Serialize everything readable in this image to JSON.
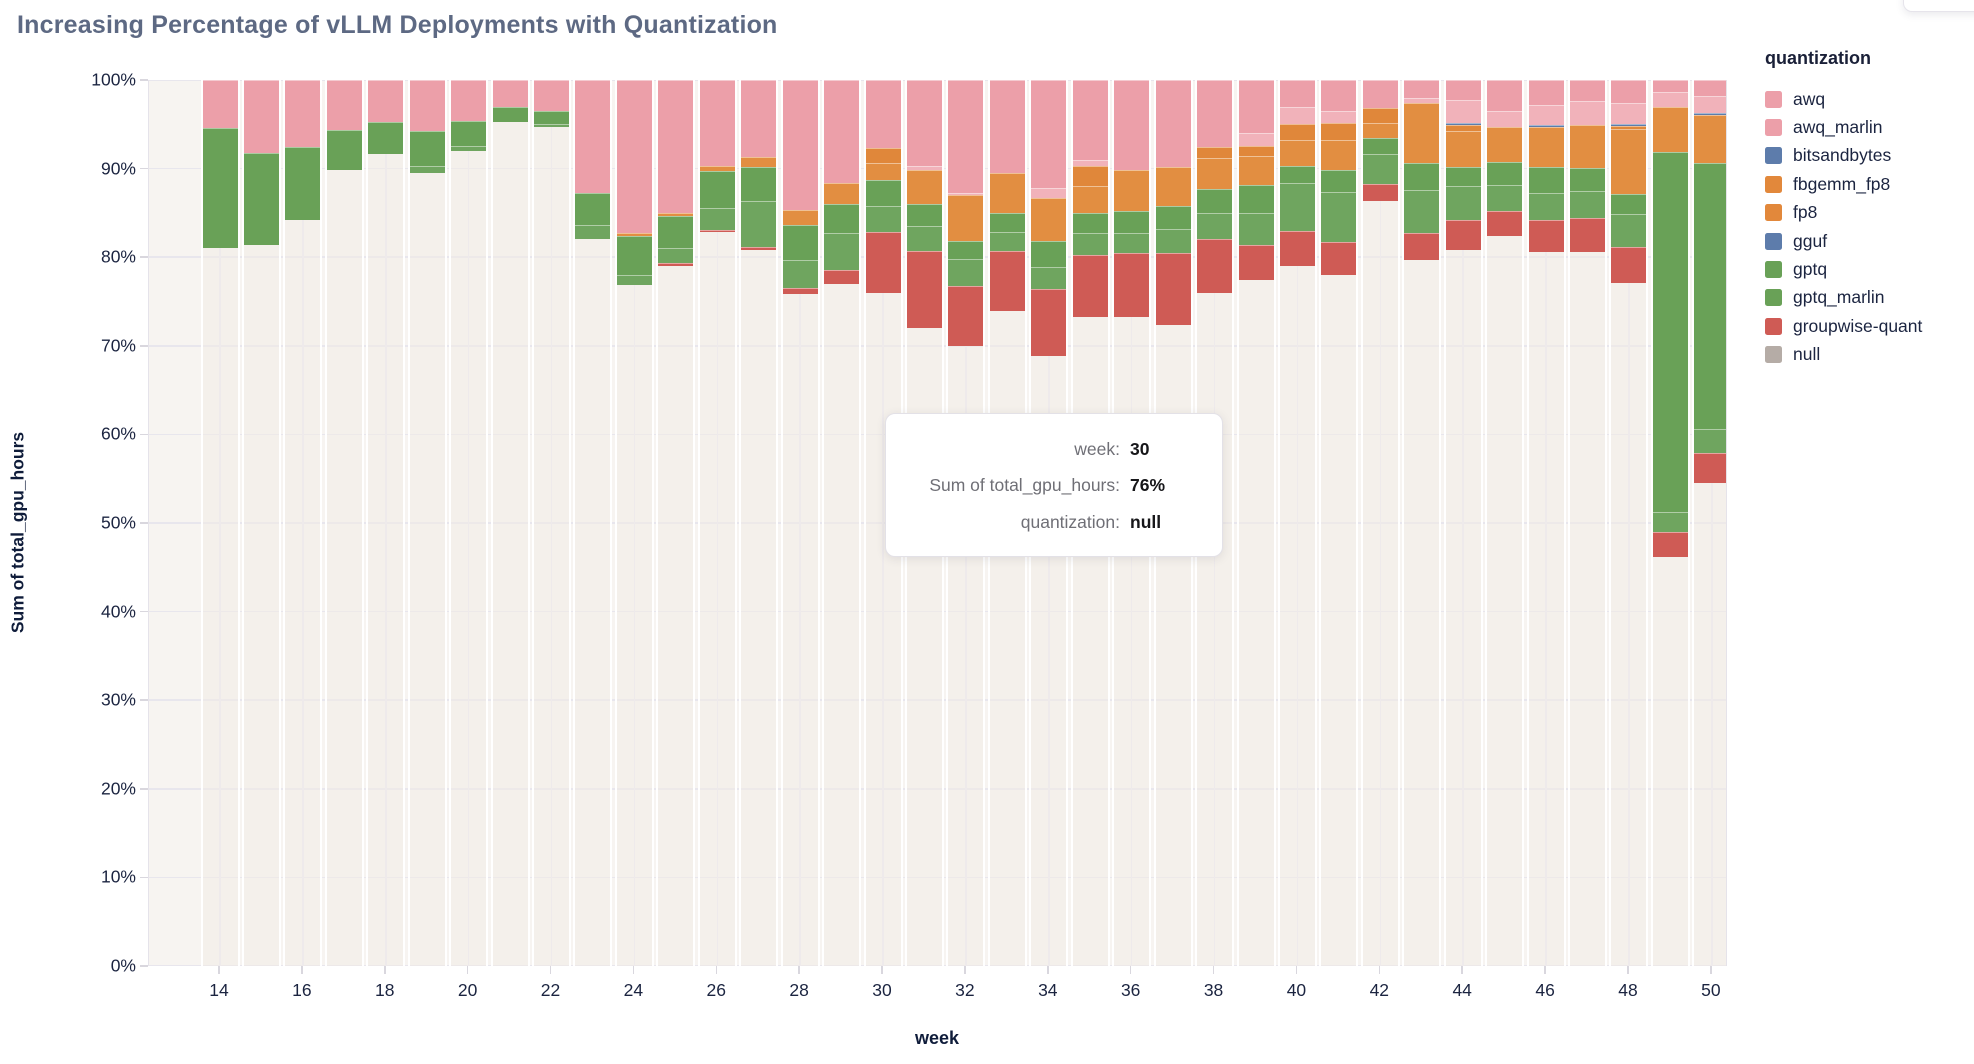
{
  "title": {
    "text": "Increasing Percentage of vLLM Deployments with Quantization"
  },
  "y_axis": {
    "title": "Sum of total_gpu_hours",
    "tick_labels": [
      "0%",
      "10%",
      "20%",
      "30%",
      "40%",
      "50%",
      "60%",
      "70%",
      "80%",
      "90%",
      "100%"
    ]
  },
  "x_axis": {
    "title": "week",
    "tick_labels": [
      "14",
      "16",
      "18",
      "20",
      "22",
      "24",
      "26",
      "28",
      "30",
      "32",
      "34",
      "36",
      "38",
      "40",
      "42",
      "44",
      "46",
      "48",
      "50"
    ]
  },
  "legend": {
    "title": "quantization",
    "items": [
      {
        "label": "awq",
        "color": "#EC9FA9"
      },
      {
        "label": "awq_marlin",
        "color": "#EC9FA9"
      },
      {
        "label": "bitsandbytes",
        "color": "#5D7CAB"
      },
      {
        "label": "fbgemm_fp8",
        "color": "#E2883B"
      },
      {
        "label": "fp8",
        "color": "#E2883B"
      },
      {
        "label": "gguf",
        "color": "#5D7CAB"
      },
      {
        "label": "gptq",
        "color": "#69A157"
      },
      {
        "label": "gptq_marlin",
        "color": "#69A157"
      },
      {
        "label": "groupwise-quant",
        "color": "#CF5B55"
      },
      {
        "label": "null",
        "color": "#B5ACA6"
      }
    ]
  },
  "tooltip": {
    "rows": [
      {
        "label": "week:",
        "value": "30"
      },
      {
        "label": "Sum of total_gpu_hours:",
        "value": "76%"
      },
      {
        "label": "quantization:",
        "value": "null"
      }
    ]
  },
  "chart_data": {
    "type": "bar",
    "subtype": "stacked_percent",
    "title": "Increasing Percentage of vLLM Deployments with Quantization",
    "xlabel": "week",
    "ylabel": "Sum of total_gpu_hours",
    "ylim": [
      0,
      100
    ],
    "y_unit": "%",
    "grid": true,
    "legend_position": "right",
    "stack_order_bottom_to_top": [
      "null",
      "groupwise-quant",
      "gptq_marlin",
      "gptq",
      "gguf",
      "fp8",
      "fbgemm_fp8",
      "bitsandbytes",
      "awq_marlin",
      "awq"
    ],
    "colors": {
      "awq": "#EC9FA9",
      "awq_marlin": "#F1B2BA",
      "bitsandbytes": "#5D7CAB",
      "fbgemm_fp8": "#E0873A",
      "fp8": "#E28E41",
      "gguf": "#5D7CAB",
      "gptq": "#69A157",
      "gptq_marlin": "#6FA55F",
      "groupwise-quant": "#CF5B55",
      "null": "rgba(242,236,229,0.5)"
    },
    "bars": [
      {
        "week": 14,
        "segments": [
          [
            "null",
            81.0
          ],
          [
            "gptq",
            13.6
          ],
          [
            "awq",
            5.4
          ]
        ]
      },
      {
        "week": 15,
        "segments": [
          [
            "null",
            81.4
          ],
          [
            "gptq",
            10.4
          ],
          [
            "awq",
            8.2
          ]
        ]
      },
      {
        "week": 16,
        "segments": [
          [
            "null",
            84.2
          ],
          [
            "gptq",
            8.2
          ],
          [
            "awq",
            7.6
          ]
        ]
      },
      {
        "week": 17,
        "segments": [
          [
            "null",
            89.8
          ],
          [
            "gptq",
            4.6
          ],
          [
            "awq",
            5.6
          ]
        ]
      },
      {
        "week": 18,
        "segments": [
          [
            "null",
            91.7
          ],
          [
            "gptq",
            3.6
          ],
          [
            "awq",
            4.7
          ]
        ]
      },
      {
        "week": 19,
        "segments": [
          [
            "null",
            89.5
          ],
          [
            "gptq_marlin",
            0.8
          ],
          [
            "gptq",
            4.0
          ],
          [
            "awq",
            5.7
          ]
        ]
      },
      {
        "week": 20,
        "segments": [
          [
            "null",
            92.0
          ],
          [
            "gptq_marlin",
            0.6
          ],
          [
            "gptq",
            2.8
          ],
          [
            "awq",
            4.6
          ]
        ]
      },
      {
        "week": 21,
        "segments": [
          [
            "null",
            95.3
          ],
          [
            "gptq",
            1.7
          ],
          [
            "awq",
            3.0
          ]
        ]
      },
      {
        "week": 22,
        "segments": [
          [
            "null",
            94.7
          ],
          [
            "gptq_marlin",
            0.3
          ],
          [
            "gptq",
            1.5
          ],
          [
            "awq",
            3.5
          ]
        ]
      },
      {
        "week": 23,
        "segments": [
          [
            "null",
            82.1
          ],
          [
            "gptq_marlin",
            1.5
          ],
          [
            "gptq",
            3.7
          ],
          [
            "awq",
            12.7
          ]
        ]
      },
      {
        "week": 24,
        "segments": [
          [
            "null",
            76.9
          ],
          [
            "gptq_marlin",
            1.1
          ],
          [
            "gptq",
            4.4
          ],
          [
            "fp8",
            0.3
          ],
          [
            "awq",
            17.3
          ]
        ]
      },
      {
        "week": 25,
        "segments": [
          [
            "null",
            79.0
          ],
          [
            "groupwise-quant",
            0.4
          ],
          [
            "gptq_marlin",
            1.6
          ],
          [
            "gptq",
            3.7
          ],
          [
            "fp8",
            0.3
          ],
          [
            "awq",
            15.0
          ]
        ]
      },
      {
        "week": 26,
        "segments": [
          [
            "null",
            82.8
          ],
          [
            "groupwise-quant",
            0.3
          ],
          [
            "gptq_marlin",
            2.4
          ],
          [
            "gptq",
            4.2
          ],
          [
            "fp8",
            0.6
          ],
          [
            "awq",
            9.7
          ]
        ]
      },
      {
        "week": 27,
        "segments": [
          [
            "null",
            80.8
          ],
          [
            "groupwise-quant",
            0.3
          ],
          [
            "gptq_marlin",
            5.3
          ],
          [
            "gptq",
            3.8
          ],
          [
            "fp8",
            1.1
          ],
          [
            "awq",
            8.7
          ]
        ]
      },
      {
        "week": 28,
        "segments": [
          [
            "null",
            75.9
          ],
          [
            "groupwise-quant",
            0.6
          ],
          [
            "gptq_marlin",
            3.2
          ],
          [
            "gptq",
            3.9
          ],
          [
            "fp8",
            1.7
          ],
          [
            "awq",
            14.7
          ]
        ]
      },
      {
        "week": 29,
        "segments": [
          [
            "null",
            77.0
          ],
          [
            "groupwise-quant",
            1.6
          ],
          [
            "gptq_marlin",
            4.1
          ],
          [
            "gptq",
            3.3
          ],
          [
            "fp8",
            2.4
          ],
          [
            "awq",
            11.6
          ]
        ]
      },
      {
        "week": 30,
        "segments": [
          [
            "null",
            76.0
          ],
          [
            "groupwise-quant",
            6.8
          ],
          [
            "gptq_marlin",
            3.0
          ],
          [
            "gptq",
            2.9
          ],
          [
            "fp8",
            1.9
          ],
          [
            "fbgemm_fp8",
            1.7
          ],
          [
            "awq",
            7.7
          ]
        ]
      },
      {
        "week": 31,
        "segments": [
          [
            "null",
            72.0
          ],
          [
            "groupwise-quant",
            8.7
          ],
          [
            "gptq_marlin",
            2.8
          ],
          [
            "gptq",
            2.5
          ],
          [
            "fp8",
            3.9
          ],
          [
            "awq_marlin",
            0.4
          ],
          [
            "awq",
            9.7
          ]
        ]
      },
      {
        "week": 32,
        "segments": [
          [
            "null",
            70.0
          ],
          [
            "groupwise-quant",
            6.7
          ],
          [
            "gptq_marlin",
            3.1
          ],
          [
            "gptq",
            2.0
          ],
          [
            "fp8",
            5.2
          ],
          [
            "awq_marlin",
            0.3
          ],
          [
            "awq",
            12.7
          ]
        ]
      },
      {
        "week": 33,
        "segments": [
          [
            "null",
            73.9
          ],
          [
            "groupwise-quant",
            6.8
          ],
          [
            "gptq_marlin",
            2.1
          ],
          [
            "gptq",
            2.2
          ],
          [
            "fp8",
            4.5
          ],
          [
            "awq",
            10.5
          ]
        ]
      },
      {
        "week": 34,
        "segments": [
          [
            "null",
            68.8
          ],
          [
            "groupwise-quant",
            7.6
          ],
          [
            "gptq_marlin",
            2.5
          ],
          [
            "gptq",
            2.9
          ],
          [
            "fp8",
            4.9
          ],
          [
            "awq_marlin",
            1.1
          ],
          [
            "awq",
            12.2
          ]
        ]
      },
      {
        "week": 35,
        "segments": [
          [
            "null",
            73.2
          ],
          [
            "groupwise-quant",
            7.1
          ],
          [
            "gptq_marlin",
            2.4
          ],
          [
            "gptq",
            2.3
          ],
          [
            "fp8",
            3.0
          ],
          [
            "fbgemm_fp8",
            2.3
          ],
          [
            "awq_marlin",
            0.7
          ],
          [
            "awq",
            9.0
          ]
        ]
      },
      {
        "week": 36,
        "segments": [
          [
            "null",
            73.2
          ],
          [
            "groupwise-quant",
            7.3
          ],
          [
            "gptq_marlin",
            2.2
          ],
          [
            "gptq",
            2.5
          ],
          [
            "fp8",
            4.7
          ],
          [
            "awq",
            10.1
          ]
        ]
      },
      {
        "week": 37,
        "segments": [
          [
            "null",
            72.3
          ],
          [
            "groupwise-quant",
            8.2
          ],
          [
            "gptq_marlin",
            2.7
          ],
          [
            "gptq",
            2.6
          ],
          [
            "fp8",
            4.4
          ],
          [
            "awq",
            9.8
          ]
        ]
      },
      {
        "week": 38,
        "segments": [
          [
            "null",
            76.0
          ],
          [
            "groupwise-quant",
            6.0
          ],
          [
            "gptq_marlin",
            3.0
          ],
          [
            "gptq",
            2.7
          ],
          [
            "fp8",
            3.5
          ],
          [
            "fbgemm_fp8",
            1.2
          ],
          [
            "awq",
            7.6
          ]
        ]
      },
      {
        "week": 39,
        "segments": [
          [
            "null",
            77.4
          ],
          [
            "groupwise-quant",
            4.0
          ],
          [
            "gptq_marlin",
            3.6
          ],
          [
            "gptq",
            3.1
          ],
          [
            "fp8",
            3.3
          ],
          [
            "fbgemm_fp8",
            1.1
          ],
          [
            "awq_marlin",
            1.5
          ],
          [
            "awq",
            6.0
          ]
        ]
      },
      {
        "week": 40,
        "segments": [
          [
            "null",
            79.0
          ],
          [
            "groupwise-quant",
            4.0
          ],
          [
            "gptq_marlin",
            5.4
          ],
          [
            "gptq",
            1.9
          ],
          [
            "fp8",
            2.9
          ],
          [
            "fbgemm_fp8",
            1.8
          ],
          [
            "awq_marlin",
            1.9
          ],
          [
            "awq",
            3.1
          ]
        ]
      },
      {
        "week": 41,
        "segments": [
          [
            "null",
            78.0
          ],
          [
            "groupwise-quant",
            3.7
          ],
          [
            "gptq_marlin",
            5.7
          ],
          [
            "gptq",
            2.5
          ],
          [
            "fp8",
            3.3
          ],
          [
            "fbgemm_fp8",
            1.9
          ],
          [
            "awq_marlin",
            1.4
          ],
          [
            "awq",
            3.5
          ]
        ]
      },
      {
        "week": 42,
        "segments": [
          [
            "null",
            86.3
          ],
          [
            "groupwise-quant",
            2.0
          ],
          [
            "gptq_marlin",
            3.4
          ],
          [
            "gptq",
            1.8
          ],
          [
            "fp8",
            1.7
          ],
          [
            "fbgemm_fp8",
            1.6
          ],
          [
            "awq",
            3.2
          ]
        ]
      },
      {
        "week": 43,
        "segments": [
          [
            "null",
            79.7
          ],
          [
            "groupwise-quant",
            3.0
          ],
          [
            "gptq_marlin",
            4.9
          ],
          [
            "gptq",
            3.0
          ],
          [
            "fp8",
            6.8
          ],
          [
            "awq_marlin",
            0.6
          ],
          [
            "awq",
            2.0
          ]
        ]
      },
      {
        "week": 44,
        "segments": [
          [
            "null",
            80.8
          ],
          [
            "groupwise-quant",
            3.4
          ],
          [
            "gptq_marlin",
            3.8
          ],
          [
            "gptq",
            2.2
          ],
          [
            "fp8",
            4.0
          ],
          [
            "fbgemm_fp8",
            0.7
          ],
          [
            "bitsandbytes",
            0.2
          ],
          [
            "awq_marlin",
            2.7
          ],
          [
            "awq",
            2.2
          ]
        ]
      },
      {
        "week": 45,
        "segments": [
          [
            "null",
            82.4
          ],
          [
            "groupwise-quant",
            2.8
          ],
          [
            "gptq_marlin",
            3.0
          ],
          [
            "gptq",
            2.6
          ],
          [
            "fp8",
            3.9
          ],
          [
            "awq_marlin",
            1.8
          ],
          [
            "awq",
            3.5
          ]
        ]
      },
      {
        "week": 46,
        "segments": [
          [
            "null",
            80.6
          ],
          [
            "groupwise-quant",
            3.6
          ],
          [
            "gptq_marlin",
            3.1
          ],
          [
            "gptq",
            2.9
          ],
          [
            "fp8",
            4.5
          ],
          [
            "bitsandbytes",
            0.2
          ],
          [
            "awq_marlin",
            2.3
          ],
          [
            "awq",
            2.8
          ]
        ]
      },
      {
        "week": 47,
        "segments": [
          [
            "null",
            80.6
          ],
          [
            "groupwise-quant",
            3.8
          ],
          [
            "gptq_marlin",
            3.1
          ],
          [
            "gptq",
            2.6
          ],
          [
            "fp8",
            4.8
          ],
          [
            "awq_marlin",
            2.7
          ],
          [
            "awq",
            2.4
          ]
        ]
      },
      {
        "week": 48,
        "segments": [
          [
            "null",
            77.1
          ],
          [
            "groupwise-quant",
            4.0
          ],
          [
            "gptq_marlin",
            3.8
          ],
          [
            "gptq",
            2.2
          ],
          [
            "fp8",
            7.4
          ],
          [
            "fbgemm_fp8",
            0.3
          ],
          [
            "bitsandbytes",
            0.2
          ],
          [
            "awq_marlin",
            2.4
          ],
          [
            "awq",
            2.6
          ]
        ]
      },
      {
        "week": 49,
        "segments": [
          [
            "null",
            46.2
          ],
          [
            "groupwise-quant",
            2.8
          ],
          [
            "gptq_marlin",
            2.2
          ],
          [
            "gptq",
            40.7
          ],
          [
            "fp8",
            5.1
          ],
          [
            "awq_marlin",
            1.7
          ],
          [
            "awq",
            1.3
          ]
        ]
      },
      {
        "week": 50,
        "segments": [
          [
            "null",
            54.5
          ],
          [
            "groupwise-quant",
            3.4
          ],
          [
            "gptq_marlin",
            2.7
          ],
          [
            "gptq",
            30.0
          ],
          [
            "fp8",
            5.5
          ],
          [
            "bitsandbytes",
            0.2
          ],
          [
            "awq_marlin",
            1.9
          ],
          [
            "awq",
            1.8
          ]
        ]
      }
    ]
  }
}
